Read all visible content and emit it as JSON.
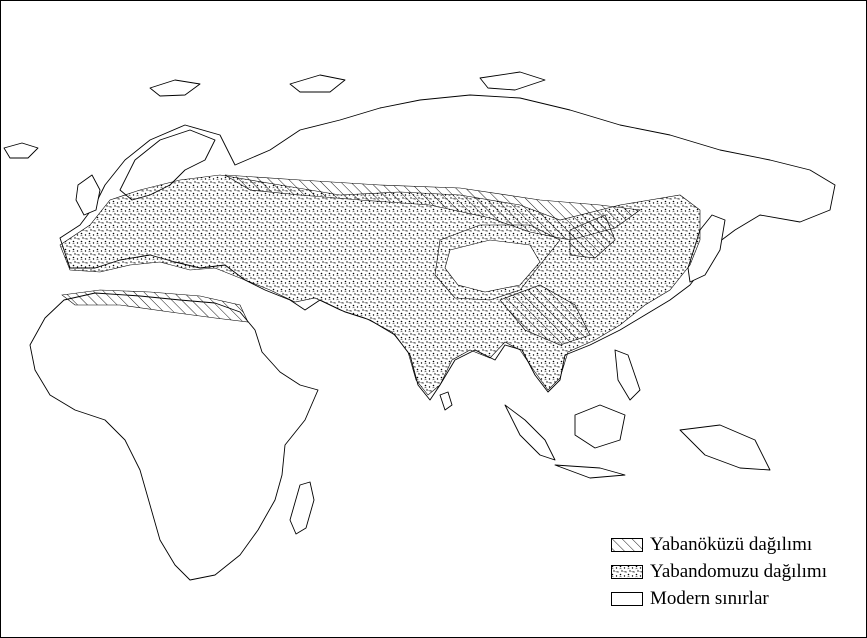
{
  "legend": [
    {
      "label": "Yabanöküzü dağılımı",
      "pattern": "hatch"
    },
    {
      "label": "Yabandomuzu dağılımı",
      "pattern": "stipple"
    },
    {
      "label": "Modern sınırlar",
      "pattern": "outline"
    }
  ],
  "colors": {
    "ink": "#000000",
    "background": "#ffffff"
  }
}
